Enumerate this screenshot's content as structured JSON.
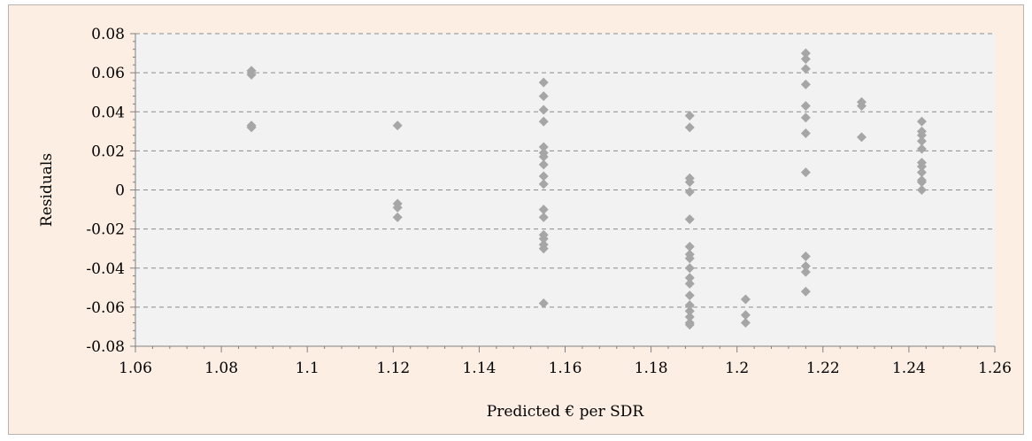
{
  "chart_data": {
    "type": "scatter",
    "title": "",
    "xlabel": "Predicted € per SDR",
    "ylabel": "Residuals",
    "xlim": [
      1.06,
      1.26
    ],
    "ylim": [
      -0.08,
      0.08
    ],
    "x_ticks": [
      1.06,
      1.08,
      1.1,
      1.12,
      1.14,
      1.16,
      1.18,
      1.2,
      1.22,
      1.24,
      1.26
    ],
    "x_tick_labels": [
      "1.06",
      "1.08",
      "1.1",
      "1.12",
      "1.14",
      "1.16",
      "1.18",
      "1.2",
      "1.22",
      "1.24",
      "1.26"
    ],
    "y_ticks": [
      0.08,
      0.06,
      0.04,
      0.02,
      0,
      -0.02,
      -0.04,
      -0.06,
      -0.08
    ],
    "y_tick_labels": [
      "0.08",
      "0.06",
      "0.04",
      "0.02",
      "0",
      "-0.02",
      "-0.04",
      "-0.06",
      "-0.08"
    ],
    "grid": "horizontal dashed",
    "legend": "none",
    "colors": {
      "marker": "#a6a6a6",
      "plot_bg": "#f2f2f2",
      "frame_bg": "#fdeee3",
      "grid": "#8c8c8c"
    },
    "series": [
      {
        "marker": "diamond",
        "points": [
          [
            1.087,
            0.061
          ],
          [
            1.087,
            0.059
          ],
          [
            1.087,
            0.033
          ],
          [
            1.087,
            0.032
          ],
          [
            1.121,
            0.033
          ],
          [
            1.121,
            -0.007
          ],
          [
            1.121,
            -0.009
          ],
          [
            1.121,
            -0.014
          ],
          [
            1.155,
            0.055
          ],
          [
            1.155,
            0.048
          ],
          [
            1.155,
            0.041
          ],
          [
            1.155,
            0.035
          ],
          [
            1.155,
            0.022
          ],
          [
            1.155,
            0.019
          ],
          [
            1.155,
            0.017
          ],
          [
            1.155,
            0.013
          ],
          [
            1.155,
            0.007
          ],
          [
            1.155,
            0.003
          ],
          [
            1.155,
            -0.01
          ],
          [
            1.155,
            -0.014
          ],
          [
            1.155,
            -0.023
          ],
          [
            1.155,
            -0.025
          ],
          [
            1.155,
            -0.028
          ],
          [
            1.155,
            -0.03
          ],
          [
            1.155,
            -0.058
          ],
          [
            1.189,
            0.038
          ],
          [
            1.189,
            0.032
          ],
          [
            1.189,
            0.006
          ],
          [
            1.189,
            0.004
          ],
          [
            1.189,
            -0.001
          ],
          [
            1.189,
            -0.015
          ],
          [
            1.189,
            -0.029
          ],
          [
            1.189,
            -0.033
          ],
          [
            1.189,
            -0.035
          ],
          [
            1.189,
            -0.04
          ],
          [
            1.189,
            -0.045
          ],
          [
            1.189,
            -0.048
          ],
          [
            1.189,
            -0.054
          ],
          [
            1.189,
            -0.059
          ],
          [
            1.189,
            -0.062
          ],
          [
            1.189,
            -0.065
          ],
          [
            1.189,
            -0.068
          ],
          [
            1.189,
            -0.069
          ],
          [
            1.202,
            -0.056
          ],
          [
            1.202,
            -0.064
          ],
          [
            1.202,
            -0.068
          ],
          [
            1.216,
            0.07
          ],
          [
            1.216,
            0.067
          ],
          [
            1.216,
            0.062
          ],
          [
            1.216,
            0.054
          ],
          [
            1.216,
            0.043
          ],
          [
            1.216,
            0.037
          ],
          [
            1.216,
            0.029
          ],
          [
            1.216,
            0.009
          ],
          [
            1.216,
            -0.034
          ],
          [
            1.216,
            -0.039
          ],
          [
            1.216,
            -0.042
          ],
          [
            1.216,
            -0.052
          ],
          [
            1.229,
            0.045
          ],
          [
            1.229,
            0.043
          ],
          [
            1.229,
            0.027
          ],
          [
            1.243,
            0.035
          ],
          [
            1.243,
            0.03
          ],
          [
            1.243,
            0.028
          ],
          [
            1.243,
            0.025
          ],
          [
            1.243,
            0.021
          ],
          [
            1.243,
            0.014
          ],
          [
            1.243,
            0.012
          ],
          [
            1.243,
            0.009
          ],
          [
            1.243,
            0.005
          ],
          [
            1.243,
            0.004
          ],
          [
            1.243,
            0.0
          ]
        ]
      }
    ]
  }
}
